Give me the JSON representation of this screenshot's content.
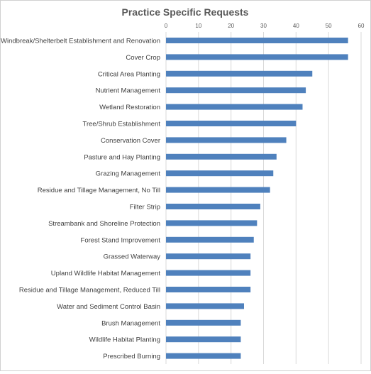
{
  "chart_data": {
    "type": "bar",
    "orientation": "horizontal",
    "title": "Practice Specific Requests",
    "xlabel": "",
    "ylabel": "",
    "xlim": [
      0,
      60
    ],
    "xticks": [
      0,
      10,
      20,
      30,
      40,
      50,
      60
    ],
    "x_axis_position": "top",
    "grid": true,
    "legend": "none",
    "bar_color": "#4f81bd",
    "categories": [
      "Windbreak/Shelterbelt Establishment and Renovation",
      "Cover Crop",
      "Critical Area Planting",
      "Nutrient Management",
      "Wetland Restoration",
      "Tree/Shrub Establishment",
      "Conservation Cover",
      "Pasture and Hay Planting",
      "Grazing Management",
      "Residue and Tillage Management, No Till",
      "Filter Strip",
      "Streambank and Shoreline Protection",
      "Forest Stand Improvement",
      "Grassed Waterway",
      "Upland Wildlife Habitat Management",
      "Residue and Tillage Management, Reduced Till",
      "Water and Sediment Control Basin",
      "Brush Management",
      "Wildlife Habitat Planting",
      "Prescribed Burning"
    ],
    "values": [
      56,
      56,
      45,
      43,
      42,
      40,
      37,
      34,
      33,
      32,
      29,
      28,
      27,
      26,
      26,
      26,
      24,
      23,
      23,
      23
    ]
  }
}
